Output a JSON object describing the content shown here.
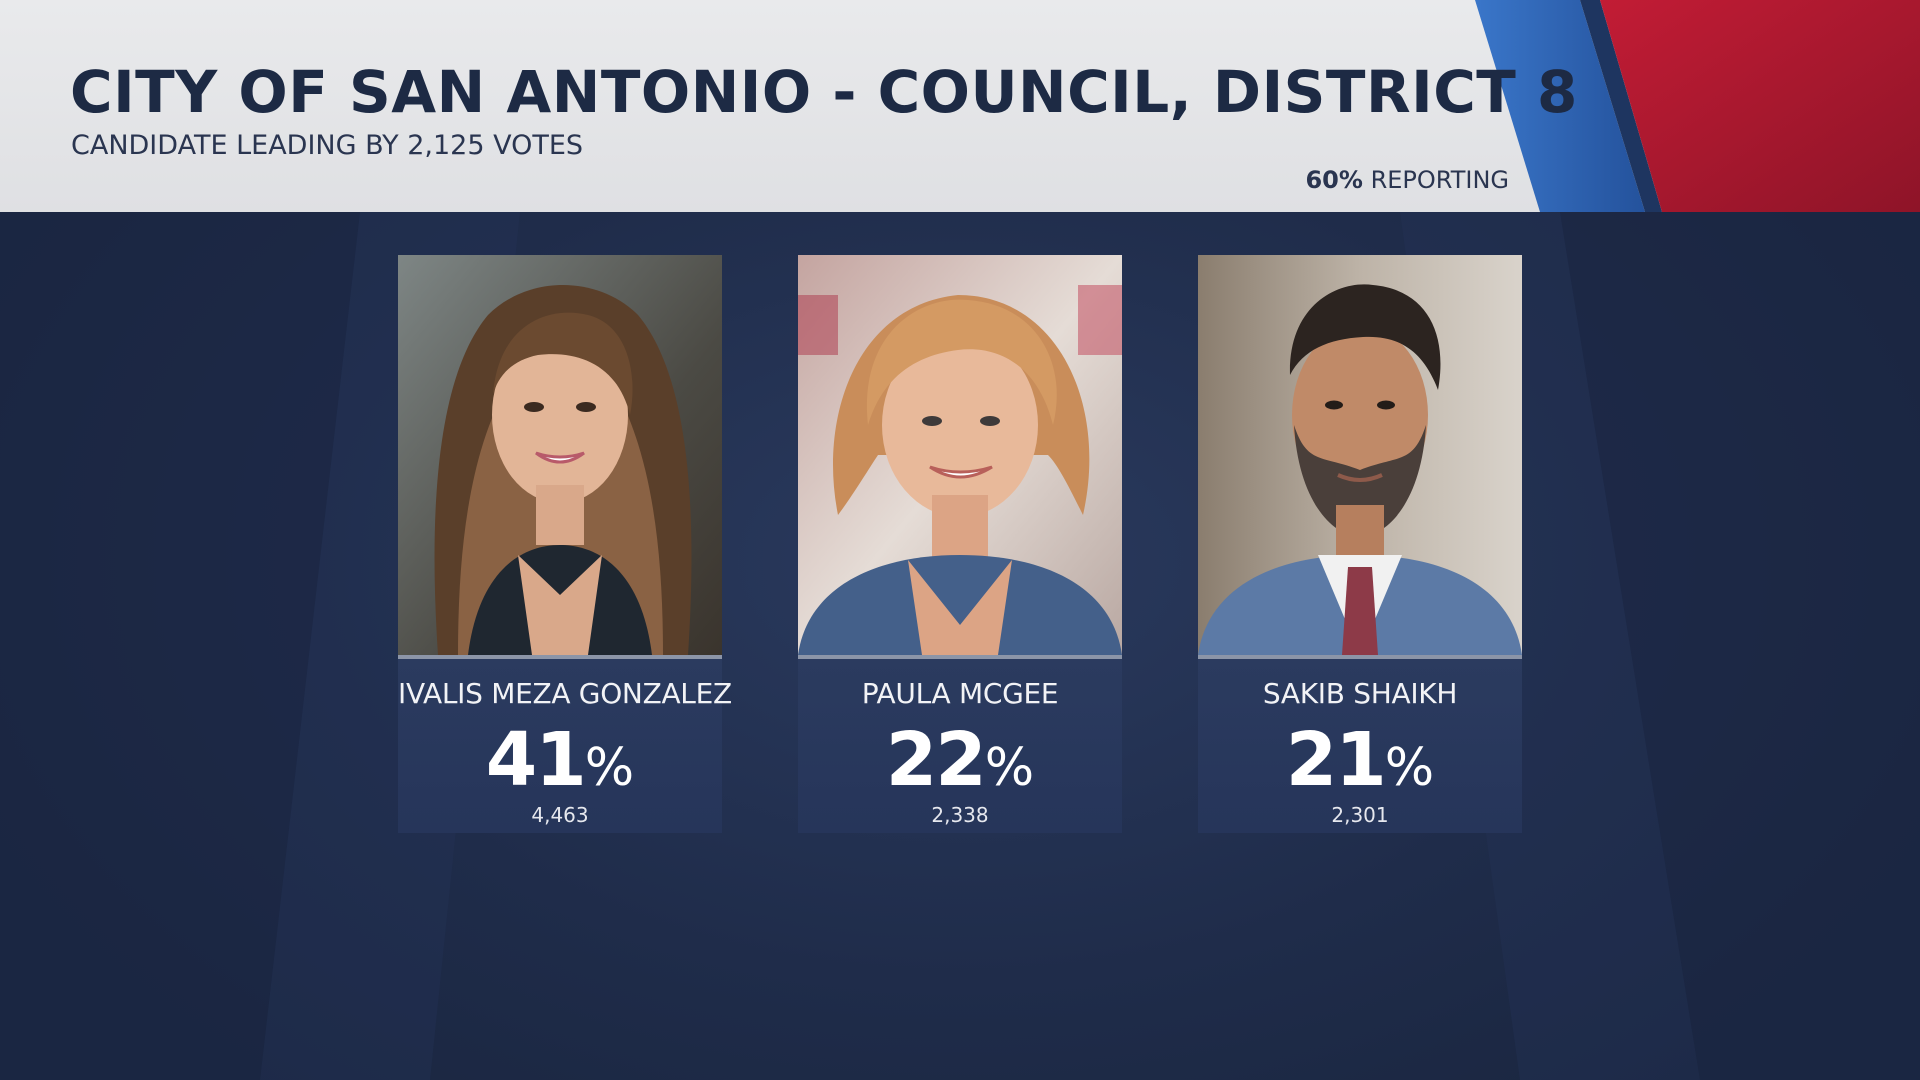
{
  "header": {
    "title": "CITY OF SAN ANTONIO - COUNCIL, DISTRICT 8",
    "subtitle": "CANDIDATE LEADING BY 2,125 VOTES",
    "reporting_pct": "60%",
    "reporting_label": "REPORTING"
  },
  "colors": {
    "header_bg": "#e4e5e8",
    "title_text": "#1d2a44",
    "accent_blue": "#2f63b4",
    "accent_red": "#a8182e",
    "board_bg": "#22304f",
    "card_bg": "#28385c"
  },
  "candidates": [
    {
      "name": "IVALIS MEZA GONZALEZ",
      "pct_value": "41",
      "pct_sign": "%",
      "votes": "4,463",
      "photo": "candidate-photo-ivalis"
    },
    {
      "name": "PAULA MCGEE",
      "pct_value": "22",
      "pct_sign": "%",
      "votes": "2,338",
      "photo": "candidate-photo-paula"
    },
    {
      "name": "SAKIB SHAIKH",
      "pct_value": "21",
      "pct_sign": "%",
      "votes": "2,301",
      "photo": "candidate-photo-sakib"
    }
  ]
}
